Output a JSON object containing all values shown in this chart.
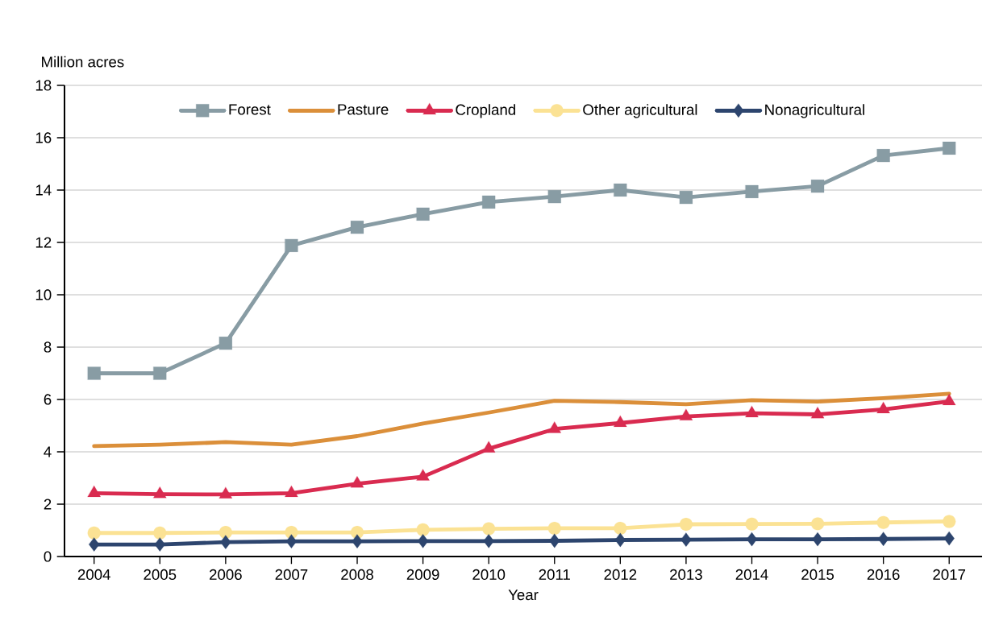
{
  "chart_data": {
    "type": "line",
    "ylabel": "Million acres",
    "xlabel": "Year",
    "x": [
      2004,
      2005,
      2006,
      2007,
      2008,
      2009,
      2010,
      2011,
      2012,
      2013,
      2014,
      2015,
      2016,
      2017
    ],
    "xlim": [
      2003.55,
      2017.5
    ],
    "xticks": [
      2004,
      2005,
      2006,
      2007,
      2008,
      2009,
      2010,
      2011,
      2012,
      2013,
      2014,
      2015,
      2016,
      2017
    ],
    "ylim": [
      0,
      18
    ],
    "yticks": [
      0,
      2,
      4,
      6,
      8,
      10,
      12,
      14,
      16,
      18
    ],
    "grid": "y",
    "legend": "top",
    "line_style": "solid",
    "series": [
      {
        "name": "Forest",
        "color": "#889ca4",
        "marker": "square",
        "values": [
          7.0,
          7.0,
          8.15,
          11.88,
          12.58,
          13.08,
          13.54,
          13.75,
          14.0,
          13.72,
          13.94,
          14.15,
          15.32,
          15.6
        ]
      },
      {
        "name": "Pasture",
        "color": "#db8f3a",
        "marker": "none",
        "values": [
          4.22,
          4.27,
          4.37,
          4.27,
          4.6,
          5.08,
          5.5,
          5.95,
          5.9,
          5.82,
          5.97,
          5.92,
          6.05,
          6.22
        ]
      },
      {
        "name": "Cropland",
        "color": "#d92b50",
        "marker": "triangle",
        "values": [
          2.42,
          2.38,
          2.37,
          2.42,
          2.78,
          3.05,
          4.12,
          4.87,
          5.1,
          5.35,
          5.47,
          5.43,
          5.62,
          5.93
        ]
      },
      {
        "name": "Other agricultural",
        "color": "#fbe294",
        "marker": "circle",
        "values": [
          0.9,
          0.9,
          0.92,
          0.92,
          0.92,
          1.02,
          1.06,
          1.08,
          1.08,
          1.23,
          1.24,
          1.25,
          1.3,
          1.34
        ]
      },
      {
        "name": "Nonagricultural",
        "color": "#2d456e",
        "marker": "diamond",
        "values": [
          0.46,
          0.46,
          0.55,
          0.58,
          0.58,
          0.59,
          0.59,
          0.6,
          0.63,
          0.64,
          0.66,
          0.66,
          0.67,
          0.69
        ]
      }
    ]
  }
}
